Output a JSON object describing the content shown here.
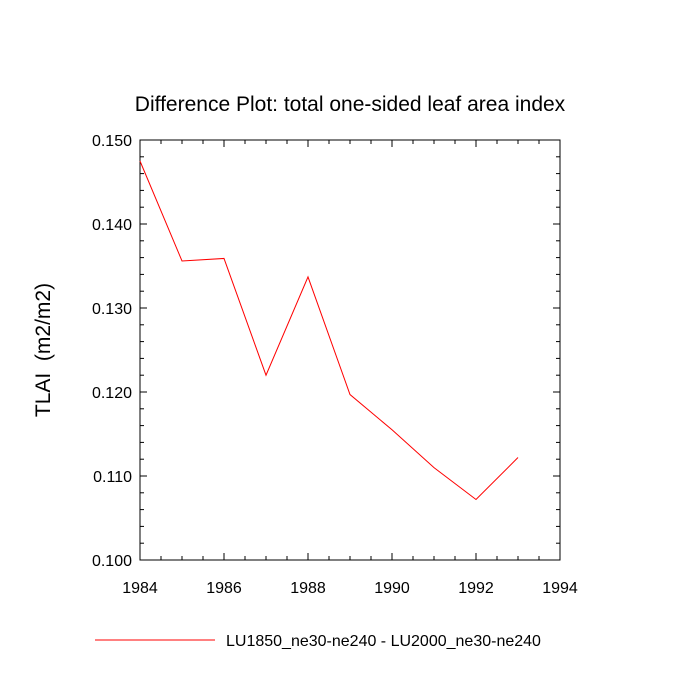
{
  "chart_data": {
    "type": "line",
    "title": "Difference Plot: total one-sided leaf area index",
    "xlabel": "",
    "ylabel": "TLAI  (m2/m2)",
    "xlim": [
      1984,
      1994
    ],
    "ylim": [
      0.1,
      0.15
    ],
    "x_ticks": [
      "1984",
      "1986",
      "1988",
      "1990",
      "1992",
      "1994"
    ],
    "y_ticks": [
      "0.100",
      "0.110",
      "0.120",
      "0.130",
      "0.140",
      "0.150"
    ],
    "grid": false,
    "legend_position": "bottom",
    "series": [
      {
        "name": "LU1850_ne30-ne240 - LU2000_ne30-ne240",
        "color": "#ff0000",
        "x": [
          1984,
          1985,
          1986,
          1987,
          1988,
          1989,
          1990,
          1991,
          1992,
          1993
        ],
        "y": [
          0.1475,
          0.1356,
          0.1359,
          0.122,
          0.1337,
          0.1197,
          0.1155,
          0.111,
          0.1072,
          0.1122
        ]
      }
    ]
  }
}
